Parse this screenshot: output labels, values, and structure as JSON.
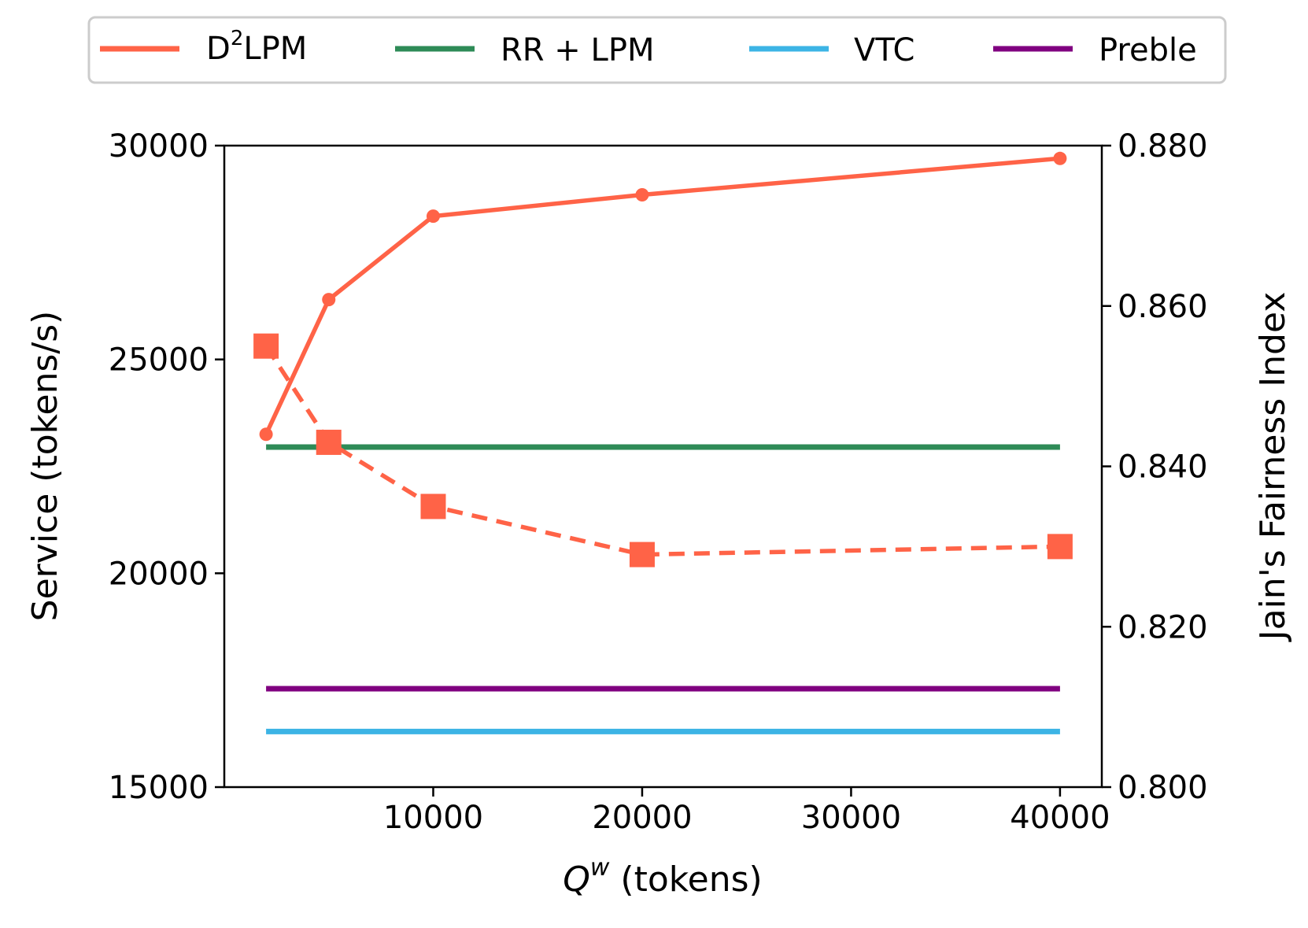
{
  "chart_data": {
    "type": "line",
    "title": "",
    "x": [
      2000,
      5000,
      10000,
      20000,
      40000
    ],
    "xlabel": {
      "symbol": "Q",
      "superscript": "w",
      "rest": " (tokens)"
    },
    "xlim": [
      0,
      42000
    ],
    "xticks": [
      10000,
      20000,
      30000,
      40000
    ],
    "ylabel_left": "Service (tokens/s)",
    "ylim_left": [
      15000,
      30000
    ],
    "yticks_left": [
      15000,
      20000,
      25000,
      30000
    ],
    "ylabel_right": "Jain's Fairness Index",
    "ylim_right": [
      0.8,
      0.88
    ],
    "yticks_right": [
      "0.800",
      "0.820",
      "0.840",
      "0.860",
      "0.880"
    ],
    "yticks_right_values": [
      0.8,
      0.82,
      0.84,
      0.86,
      0.88
    ],
    "legend_position": "top (outside, above plot)",
    "series": [
      {
        "name": "D2LPM service",
        "legend_label": {
          "main": "D",
          "sup": "2",
          "rest": "LPM"
        },
        "axis": "left",
        "style": "solid",
        "marker": "circle",
        "color": "#ff6347",
        "values": [
          23250,
          26400,
          28350,
          28850,
          29700
        ]
      },
      {
        "name": "D2LPM fairness",
        "axis": "right",
        "style": "dashed",
        "marker": "square",
        "color": "#ff6347",
        "values": [
          0.855,
          0.843,
          0.835,
          0.829,
          0.83
        ]
      },
      {
        "name": "RR + LPM",
        "axis": "left",
        "style": "solid",
        "marker": "none",
        "color": "#2e8b57",
        "constant": 22950
      },
      {
        "name": "VTC",
        "axis": "left",
        "style": "solid",
        "marker": "none",
        "color": "#3cb4e5",
        "constant": 16300
      },
      {
        "name": "Preble",
        "axis": "left",
        "style": "solid",
        "marker": "none",
        "color": "#800080",
        "constant": 17300
      }
    ],
    "legend": [
      "D2LPM",
      "RR + LPM",
      "VTC",
      "Preble"
    ]
  }
}
